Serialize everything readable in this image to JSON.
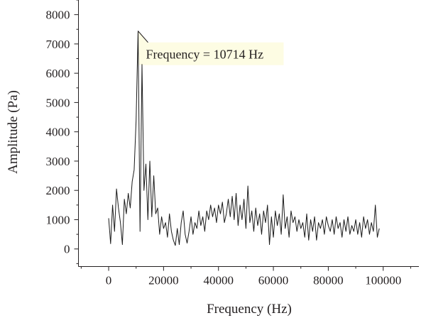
{
  "chart_data": {
    "type": "line",
    "xlabel": "Frequency (Hz)",
    "ylabel": "Amplitude (Pa)",
    "xlim": [
      -11000,
      113000
    ],
    "ylim": [
      -600,
      8500
    ],
    "x_ticks": [
      0,
      20000,
      40000,
      60000,
      80000,
      100000
    ],
    "y_ticks": [
      0,
      1000,
      2000,
      3000,
      4000,
      5000,
      6000,
      7000,
      8000
    ],
    "grid": false,
    "x": [
      0,
      714,
      1429,
      2143,
      2857,
      3571,
      4286,
      5000,
      5714,
      6429,
      7143,
      7857,
      8571,
      9286,
      10000,
      10714,
      11429,
      12143,
      12857,
      13571,
      14286,
      15000,
      15714,
      16429,
      17143,
      17857,
      18571,
      19286,
      20000,
      20714,
      21429,
      22143,
      22857,
      23571,
      24286,
      25000,
      25714,
      26429,
      27143,
      27857,
      28571,
      29286,
      30000,
      30714,
      31429,
      32143,
      32857,
      33571,
      34286,
      35000,
      35714,
      36429,
      37143,
      37857,
      38571,
      39286,
      40000,
      40714,
      41429,
      42143,
      42857,
      43571,
      44286,
      45000,
      45714,
      46429,
      47143,
      47857,
      48571,
      49286,
      50000,
      50714,
      51429,
      52143,
      52857,
      53571,
      54286,
      55000,
      55714,
      56429,
      57143,
      57857,
      58571,
      59286,
      60000,
      60714,
      61429,
      62143,
      62857,
      63571,
      64286,
      65000,
      65714,
      66429,
      67143,
      67857,
      68571,
      69286,
      70000,
      70714,
      71429,
      72143,
      72857,
      73571,
      74286,
      75000,
      75714,
      76429,
      77143,
      77857,
      78571,
      79286,
      80000,
      80714,
      81429,
      82143,
      82857,
      83571,
      84286,
      85000,
      85714,
      86429,
      87143,
      87857,
      88571,
      89286,
      90000,
      90714,
      91429,
      92143,
      92857,
      93571,
      94286,
      95000,
      95714,
      96429,
      97143,
      97857,
      98571
    ],
    "series": [
      {
        "color": "#1a1a1a",
        "values": [
          1050,
          180,
          1500,
          600,
          2050,
          1400,
          900,
          150,
          1700,
          1200,
          1900,
          1400,
          2300,
          2700,
          4400,
          7440,
          600,
          6300,
          2000,
          2900,
          1000,
          3000,
          1100,
          2500,
          1200,
          1400,
          500,
          1100,
          700,
          900,
          400,
          1200,
          600,
          300,
          120,
          700,
          150,
          900,
          1300,
          500,
          200,
          600,
          1100,
          500,
          900,
          700,
          1300,
          800,
          1100,
          600,
          1300,
          1000,
          1500,
          1100,
          1400,
          900,
          1500,
          1200,
          1600,
          900,
          1200,
          1700,
          1100,
          1800,
          1000,
          1900,
          800,
          1500,
          1000,
          1700,
          700,
          2150,
          900,
          1300,
          600,
          1400,
          800,
          1200,
          500,
          1300,
          900,
          1500,
          150,
          1100,
          400,
          1300,
          800,
          1200,
          500,
          1850,
          700,
          1100,
          400,
          1300,
          900,
          1100,
          600,
          1000,
          700,
          900,
          400,
          1200,
          300,
          1000,
          600,
          1100,
          300,
          900,
          700,
          1000,
          500,
          1100,
          800,
          600,
          1000,
          500,
          1100,
          700,
          900,
          400,
          1000,
          600,
          1100,
          500,
          800,
          600,
          1000,
          500,
          900,
          400,
          1100,
          700,
          1000,
          500,
          900,
          600,
          1500,
          400,
          700
        ]
      }
    ],
    "annotations": [
      {
        "text": "Frequency = 10714 Hz",
        "x": 10714,
        "y": 7440,
        "fill": "#fdfce3"
      }
    ]
  }
}
